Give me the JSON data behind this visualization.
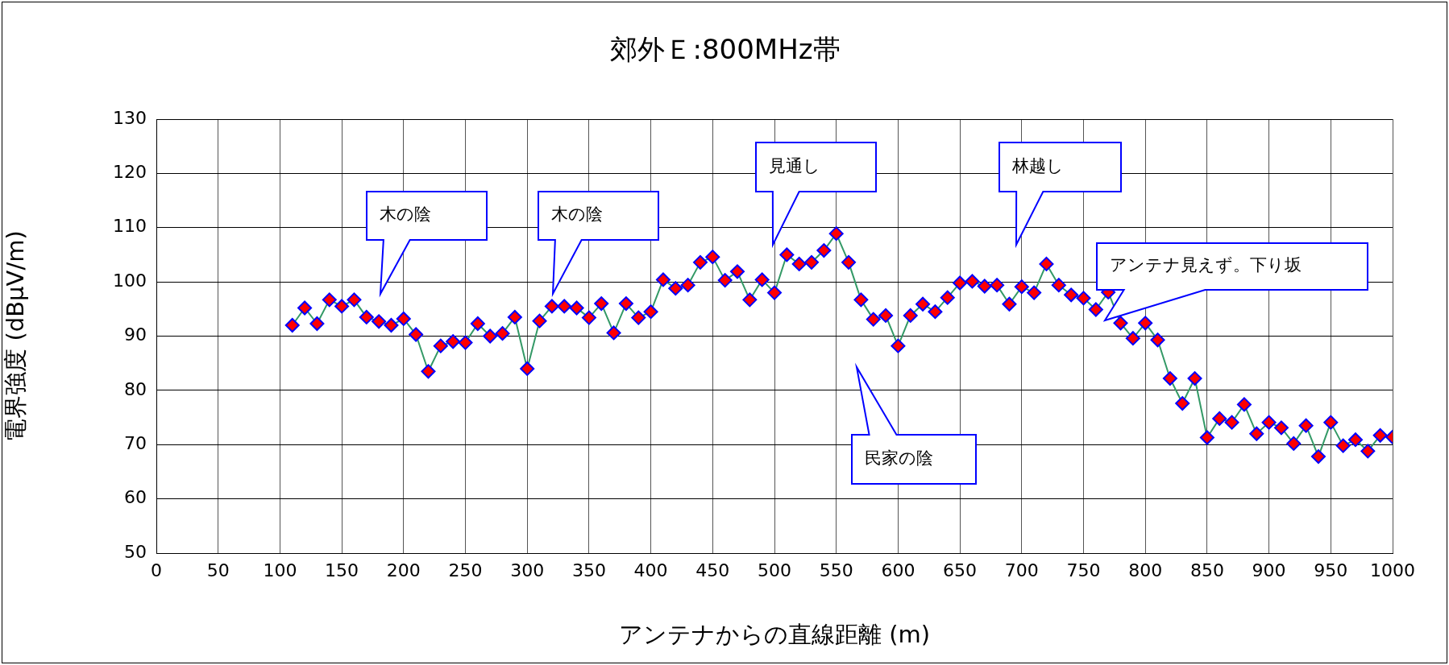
{
  "chart_data": {
    "type": "line",
    "title": "郊外Ｅ:800MHz帯",
    "xlabel": "アンテナからの直線距離 (m)",
    "ylabel": "電界強度 (dBμV/m)",
    "xlim": [
      0,
      1000
    ],
    "xticks": [
      0,
      50,
      100,
      150,
      200,
      250,
      300,
      350,
      400,
      450,
      500,
      550,
      600,
      650,
      700,
      750,
      800,
      850,
      900,
      950,
      1000
    ],
    "ylim": [
      50,
      130
    ],
    "yticks": [
      50,
      60,
      70,
      80,
      90,
      100,
      110,
      120,
      130
    ],
    "grid": true,
    "legend": false,
    "marker": "diamond",
    "line_style": "solid",
    "x": [
      110,
      120,
      130,
      140,
      150,
      160,
      170,
      180,
      190,
      200,
      210,
      220,
      230,
      240,
      250,
      260,
      270,
      280,
      290,
      300,
      310,
      320,
      330,
      340,
      350,
      360,
      370,
      380,
      390,
      400,
      410,
      420,
      430,
      440,
      450,
      460,
      470,
      480,
      490,
      500,
      510,
      520,
      530,
      540,
      550,
      560,
      570,
      580,
      590,
      600,
      610,
      620,
      630,
      640,
      650,
      660,
      670,
      680,
      690,
      700,
      710,
      720,
      730,
      740,
      750,
      760,
      770,
      780,
      790,
      800,
      810,
      820,
      830,
      840,
      850,
      860,
      870,
      880,
      890,
      900,
      910,
      920,
      930,
      940,
      950,
      960,
      970,
      980,
      990,
      1000
    ],
    "series": [
      {
        "color": "#ff0000",
        "values": [
          92,
          95.2,
          92.3,
          96.7,
          95.5,
          96.7,
          93.5,
          92.7,
          92,
          93.2,
          90.3,
          83.5,
          88.2,
          89,
          88.8,
          92.3,
          90,
          90.5,
          93.5,
          84,
          92.8,
          95.5,
          95.5,
          95.2,
          93.4,
          96,
          90.6,
          96,
          93.4,
          94.5,
          100.4,
          98.8,
          99.4,
          103.6,
          104.6,
          100.3,
          101.9,
          96.7,
          100.4,
          98,
          105,
          103.3,
          103.6,
          105.8,
          108.9,
          103.6,
          96.7,
          93.1,
          93.8,
          88.2,
          93.8,
          95.9,
          94.5,
          97.1,
          99.8,
          100.1,
          99.2,
          99.4,
          95.9,
          99.1,
          98,
          103.3,
          99.4,
          97.6,
          97,
          94.9,
          98.1,
          92.4,
          89.6,
          92.4,
          89.3,
          82.2,
          77.6,
          82.2,
          71.3,
          74.8,
          74.1,
          77.4,
          72,
          74.1,
          73.1,
          70.2,
          73.5,
          67.8,
          74.1,
          69.8,
          70.9,
          68.8,
          71.7,
          71.4
        ]
      }
    ],
    "annotations": [
      "木の陰",
      "木の陰",
      "見通し",
      "林越し",
      "アンテナ見えず。下り坂",
      "民家の陰"
    ]
  }
}
